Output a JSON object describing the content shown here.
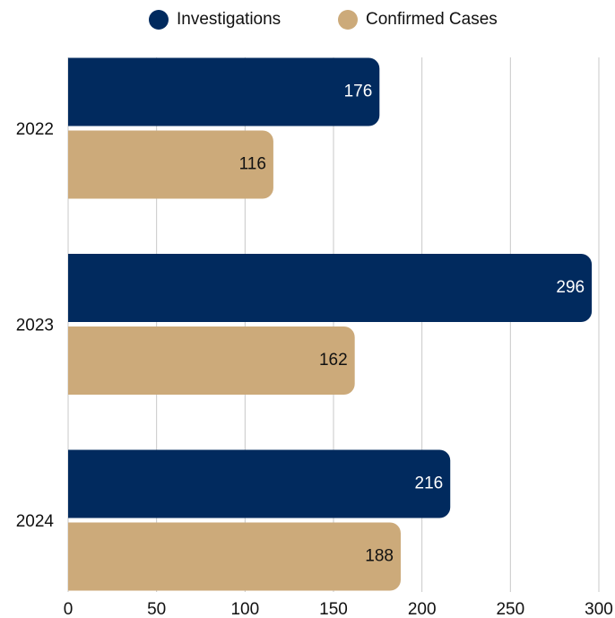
{
  "chart_data": {
    "type": "bar",
    "orientation": "horizontal",
    "categories": [
      "2022",
      "2023",
      "2024"
    ],
    "series": [
      {
        "name": "Investigations",
        "color": "#012a5e",
        "values": [
          176,
          296,
          216
        ]
      },
      {
        "name": "Confirmed Cases",
        "color": "#ccaa7a",
        "values": [
          116,
          162,
          188
        ]
      }
    ],
    "xlim": [
      0,
      300
    ],
    "xticks": [
      0,
      50,
      100,
      150,
      200,
      250,
      300
    ],
    "grid": true,
    "legend": "top"
  }
}
